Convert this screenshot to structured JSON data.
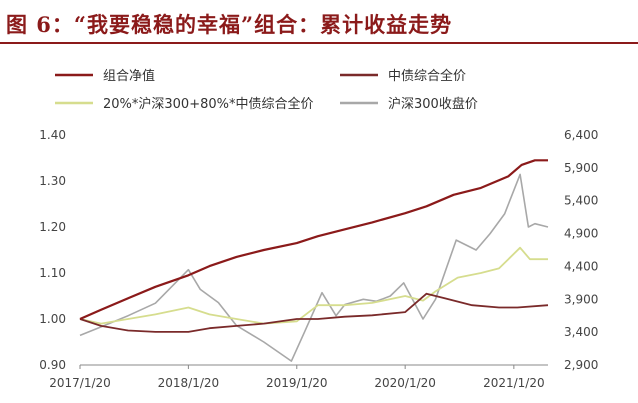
{
  "figure": {
    "title": "图 6：“我要稳稳的幸福”组合：累计收益走势"
  },
  "colors": {
    "title": "#8b1a1a",
    "portfolio": "#8b1a1a",
    "bond": "#7a2a2a",
    "benchmark": "#d6dd8e",
    "hs300": "#a8a8a8"
  },
  "chart_data": {
    "type": "line",
    "title": "",
    "xlabel": "",
    "ylabel": "",
    "x_ticks": [
      "2017/1/20",
      "2018/1/20",
      "2019/1/20",
      "2020/1/20",
      "2021/1/20"
    ],
    "x_range": [
      "2017-01-20",
      "2021-05-15"
    ],
    "y_left": {
      "range": [
        0.9,
        1.4
      ],
      "ticks": [
        "0.90",
        "1.00",
        "1.10",
        "1.20",
        "1.30",
        "1.40"
      ]
    },
    "y_right": {
      "range": [
        2900,
        6400
      ],
      "ticks": [
        "2,900",
        "3,400",
        "3,900",
        "4,400",
        "4,900",
        "5,400",
        "5,900",
        "6,400"
      ]
    },
    "legend_position": "top",
    "series": [
      {
        "name": "组合净值",
        "axis": "left",
        "color": "#8b1a1a",
        "points": [
          [
            "2017-01-20",
            1.0
          ],
          [
            "2017-04-01",
            1.02
          ],
          [
            "2017-07-01",
            1.045
          ],
          [
            "2017-10-01",
            1.07
          ],
          [
            "2018-01-20",
            1.095
          ],
          [
            "2018-04-01",
            1.115
          ],
          [
            "2018-07-01",
            1.135
          ],
          [
            "2018-10-01",
            1.15
          ],
          [
            "2019-01-20",
            1.165
          ],
          [
            "2019-04-01",
            1.18
          ],
          [
            "2019-07-01",
            1.195
          ],
          [
            "2019-10-01",
            1.21
          ],
          [
            "2020-01-20",
            1.23
          ],
          [
            "2020-04-01",
            1.245
          ],
          [
            "2020-07-01",
            1.27
          ],
          [
            "2020-10-01",
            1.285
          ],
          [
            "2021-01-01",
            1.31
          ],
          [
            "2021-02-15",
            1.335
          ],
          [
            "2021-03-10",
            1.34
          ],
          [
            "2021-04-01",
            1.345
          ],
          [
            "2021-05-15",
            1.345
          ]
        ]
      },
      {
        "name": "中债综合全价",
        "axis": "left",
        "color": "#7a2a2a",
        "points": [
          [
            "2017-01-20",
            1.0
          ],
          [
            "2017-04-01",
            0.985
          ],
          [
            "2017-07-01",
            0.975
          ],
          [
            "2017-10-01",
            0.972
          ],
          [
            "2018-01-20",
            0.972
          ],
          [
            "2018-04-01",
            0.98
          ],
          [
            "2018-07-01",
            0.985
          ],
          [
            "2018-10-01",
            0.99
          ],
          [
            "2019-01-20",
            1.0
          ],
          [
            "2019-04-01",
            1.0
          ],
          [
            "2019-07-01",
            1.005
          ],
          [
            "2019-10-01",
            1.008
          ],
          [
            "2020-01-20",
            1.015
          ],
          [
            "2020-04-01",
            1.055
          ],
          [
            "2020-06-01",
            1.045
          ],
          [
            "2020-09-01",
            1.03
          ],
          [
            "2020-12-01",
            1.025
          ],
          [
            "2021-02-01",
            1.025
          ],
          [
            "2021-05-15",
            1.03
          ]
        ]
      },
      {
        "name": "20%*沪深300+80%*中债综合全价",
        "axis": "left",
        "color": "#d6dd8e",
        "points": [
          [
            "2017-01-20",
            1.0
          ],
          [
            "2017-04-01",
            0.99
          ],
          [
            "2017-07-01",
            1.0
          ],
          [
            "2017-10-01",
            1.01
          ],
          [
            "2018-01-20",
            1.025
          ],
          [
            "2018-04-01",
            1.01
          ],
          [
            "2018-07-01",
            1.0
          ],
          [
            "2018-10-01",
            0.99
          ],
          [
            "2019-01-20",
            0.995
          ],
          [
            "2019-04-01",
            1.03
          ],
          [
            "2019-07-01",
            1.03
          ],
          [
            "2019-10-01",
            1.035
          ],
          [
            "2020-01-20",
            1.05
          ],
          [
            "2020-03-20",
            1.04
          ],
          [
            "2020-05-01",
            1.06
          ],
          [
            "2020-07-15",
            1.09
          ],
          [
            "2020-10-01",
            1.1
          ],
          [
            "2020-12-01",
            1.11
          ],
          [
            "2021-02-10",
            1.155
          ],
          [
            "2021-03-15",
            1.13
          ],
          [
            "2021-05-15",
            1.13
          ]
        ]
      },
      {
        "name": "沪深300收盘价",
        "axis": "right",
        "color": "#a8a8a8",
        "points": [
          [
            "2017-01-20",
            3350
          ],
          [
            "2017-04-01",
            3480
          ],
          [
            "2017-07-01",
            3650
          ],
          [
            "2017-10-01",
            3840
          ],
          [
            "2018-01-20",
            4350
          ],
          [
            "2018-03-01",
            4050
          ],
          [
            "2018-05-01",
            3850
          ],
          [
            "2018-07-01",
            3500
          ],
          [
            "2018-10-01",
            3250
          ],
          [
            "2019-01-02",
            2960
          ],
          [
            "2019-02-15",
            3400
          ],
          [
            "2019-04-15",
            4000
          ],
          [
            "2019-06-01",
            3650
          ],
          [
            "2019-07-01",
            3820
          ],
          [
            "2019-09-01",
            3900
          ],
          [
            "2019-10-15",
            3870
          ],
          [
            "2019-12-01",
            3950
          ],
          [
            "2020-01-15",
            4150
          ],
          [
            "2020-03-20",
            3600
          ],
          [
            "2020-05-01",
            3900
          ],
          [
            "2020-07-10",
            4800
          ],
          [
            "2020-09-15",
            4650
          ],
          [
            "2020-11-01",
            4900
          ],
          [
            "2020-12-20",
            5200
          ],
          [
            "2021-02-10",
            5800
          ],
          [
            "2021-03-10",
            5000
          ],
          [
            "2021-04-01",
            5050
          ],
          [
            "2021-05-15",
            5000
          ]
        ]
      }
    ]
  }
}
